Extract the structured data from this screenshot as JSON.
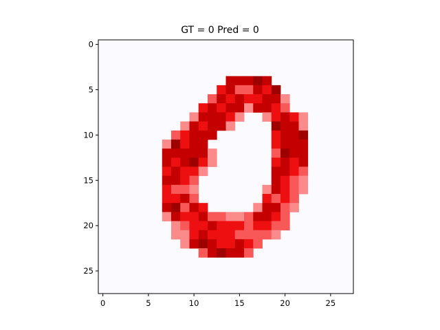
{
  "chart_data": {
    "type": "heatmap",
    "title": "GT = 0 Pred = 0",
    "xlabel": "",
    "ylabel": "",
    "xlim": [
      -0.5,
      27.5
    ],
    "ylim": [
      27.5,
      -0.5
    ],
    "x_ticks": [
      0,
      5,
      10,
      15,
      20,
      25
    ],
    "y_ticks": [
      0,
      5,
      10,
      15,
      20,
      25
    ],
    "grid": false,
    "colormap": "Reds",
    "background_color": "#fbfbff",
    "colors": {
      "light_pink": "#fdd0d0",
      "pink": "#fb8a8a",
      "salmon": "#f85858",
      "red": "#ee1010",
      "dark_red": "#c40000",
      "maroon": "#9e0000"
    },
    "levels": [
      "light_pink",
      "pink",
      "salmon",
      "red",
      "dark_red",
      "maroon"
    ],
    "rows": [
      {
        "y": 4,
        "x0": 14,
        "cells": [
          4,
          4,
          4,
          5,
          4
        ]
      },
      {
        "y": 5,
        "x0": 13,
        "cells": [
          3,
          4,
          2,
          2,
          4,
          3,
          5
        ]
      },
      {
        "y": 6,
        "x0": 12,
        "cells": [
          2,
          4,
          3,
          4,
          3,
          3,
          4,
          4,
          1
        ]
      },
      {
        "y": 7,
        "x0": 11,
        "cells": [
          3,
          4,
          3,
          4,
          4,
          1,
          4,
          4,
          3,
          2
        ]
      },
      {
        "y": 8,
        "x0": 10,
        "cells": [
          1,
          4,
          4,
          4,
          3,
          1,
          -1,
          -1,
          1,
          3,
          4,
          3,
          1
        ]
      },
      {
        "y": 9,
        "x0": 9,
        "cells": [
          1,
          4,
          3,
          4,
          4,
          1,
          -1,
          -1,
          -1,
          -1,
          5,
          4,
          4,
          1
        ]
      },
      {
        "y": 10,
        "x0": 8,
        "cells": [
          2,
          3,
          4,
          4,
          4,
          -1,
          -1,
          -1,
          -1,
          -1,
          -1,
          3,
          4,
          4,
          5
        ]
      },
      {
        "y": 11,
        "x0": 7,
        "cells": [
          1,
          5,
          3,
          4,
          4,
          -1,
          -1,
          -1,
          -1,
          -1,
          -1,
          -1,
          3,
          4,
          4,
          4
        ]
      },
      {
        "y": 12,
        "x0": 7,
        "cells": [
          4,
          4,
          4,
          4,
          4,
          1,
          -1,
          -1,
          -1,
          -1,
          -1,
          -1,
          2,
          5,
          4,
          4
        ]
      },
      {
        "y": 13,
        "x0": 7,
        "cells": [
          4,
          3,
          4,
          5,
          3,
          1,
          -1,
          -1,
          -1,
          -1,
          -1,
          -1,
          3,
          4,
          3,
          4
        ]
      },
      {
        "y": 14,
        "x0": 7,
        "cells": [
          3,
          4,
          3,
          3,
          1,
          -1,
          -1,
          -1,
          -1,
          -1,
          -1,
          -1,
          4,
          4,
          3,
          2
        ]
      },
      {
        "y": 15,
        "x0": 7,
        "cells": [
          4,
          4,
          3,
          2,
          -1,
          -1,
          -1,
          -1,
          -1,
          -1,
          -1,
          -1,
          4,
          3,
          2,
          1
        ]
      },
      {
        "y": 16,
        "x0": 7,
        "cells": [
          3,
          2,
          2,
          1,
          -1,
          -1,
          -1,
          -1,
          -1,
          -1,
          -1,
          1,
          4,
          3,
          2,
          1
        ]
      },
      {
        "y": 17,
        "x0": 7,
        "cells": [
          3,
          3,
          4,
          2,
          -1,
          -1,
          -1,
          -1,
          -1,
          -1,
          -1,
          3,
          2,
          3,
          2
        ]
      },
      {
        "y": 18,
        "x0": 7,
        "cells": [
          4,
          5,
          2,
          4,
          3,
          -1,
          -1,
          -1,
          -1,
          -1,
          1,
          4,
          4,
          2,
          1
        ]
      },
      {
        "y": 19,
        "x0": 7,
        "cells": [
          1,
          4,
          3,
          3,
          4,
          2,
          2,
          1,
          1,
          2,
          4,
          4,
          3,
          2
        ]
      },
      {
        "y": 20,
        "x0": 8,
        "cells": [
          1,
          2,
          3,
          3,
          4,
          3,
          3,
          3,
          2,
          3,
          3,
          2,
          2
        ]
      },
      {
        "y": 21,
        "x0": 8,
        "cells": [
          1,
          1,
          3,
          4,
          3,
          3,
          3,
          2,
          2,
          2,
          2,
          1
        ]
      },
      {
        "y": 22,
        "x0": 9,
        "cells": [
          1,
          4,
          5,
          4,
          3,
          3,
          4,
          3,
          2
        ]
      },
      {
        "y": 23,
        "x0": 11,
        "cells": [
          2,
          4,
          5,
          4,
          4,
          2
        ]
      }
    ]
  }
}
